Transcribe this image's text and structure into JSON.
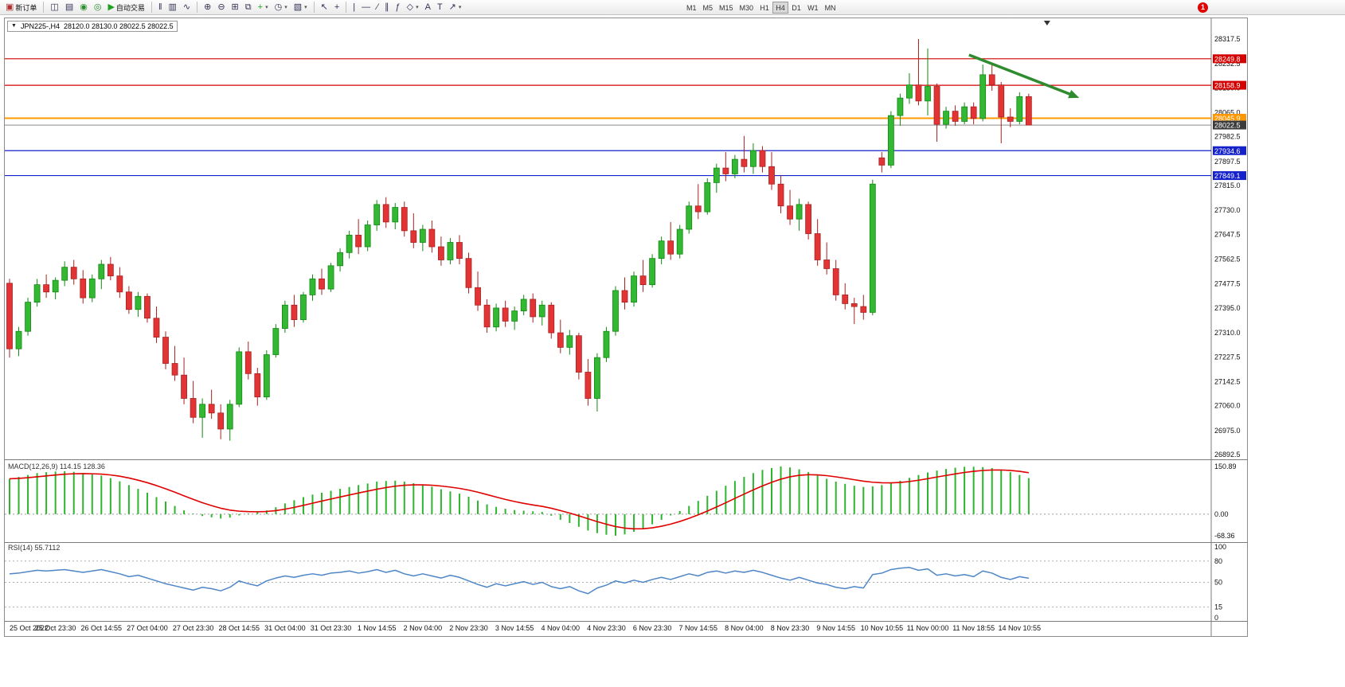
{
  "toolbar": {
    "groups": [
      [
        {
          "name": "new-order-button",
          "glyph": "▣",
          "glyph_color": "#b03030",
          "label": "新订单"
        }
      ],
      [
        {
          "name": "new-chart-button",
          "glyph": "◫"
        },
        {
          "name": "profiles-button",
          "glyph": "▤"
        },
        {
          "name": "market-watch-button",
          "glyph": "◉",
          "glyph_color": "#2a8f2a"
        },
        {
          "name": "navigator-button",
          "glyph": "◎",
          "glyph_color": "#2a8f2a"
        },
        {
          "name": "autotrading-button",
          "glyph": "▶",
          "glyph_color": "#1fa01f",
          "label": "自动交易"
        }
      ],
      [
        {
          "name": "chart-bars-button",
          "glyph": "‖"
        },
        {
          "name": "chart-candles-button",
          "glyph": "▥"
        },
        {
          "name": "chart-line-button",
          "glyph": "∿"
        }
      ],
      [
        {
          "name": "zoom-in-button",
          "glyph": "⊕"
        },
        {
          "name": "zoom-out-button",
          "glyph": "⊖"
        },
        {
          "name": "tile-windows-button",
          "glyph": "⊞"
        },
        {
          "name": "cascade-windows-button",
          "glyph": "⧉"
        },
        {
          "name": "indicators-button",
          "glyph": "+",
          "glyph_color": "#1fa01f",
          "dropdown": true
        },
        {
          "name": "periods-button",
          "glyph": "◷",
          "dropdown": true
        },
        {
          "name": "templates-button",
          "glyph": "▧",
          "dropdown": true
        }
      ],
      [
        {
          "name": "cursor-button",
          "glyph": "↖"
        },
        {
          "name": "crosshair-button",
          "glyph": "+"
        }
      ],
      [
        {
          "name": "vertical-line-button",
          "glyph": "|"
        },
        {
          "name": "horizontal-line-button",
          "glyph": "―"
        },
        {
          "name": "trendline-button",
          "glyph": "∕"
        },
        {
          "name": "channel-button",
          "glyph": "∥"
        },
        {
          "name": "fibonacci-button",
          "glyph": "ƒ"
        },
        {
          "name": "shapes-button",
          "glyph": "◇",
          "dropdown": true
        },
        {
          "name": "text-button",
          "glyph": "A"
        },
        {
          "name": "label-button",
          "glyph": "T"
        },
        {
          "name": "arrows-button",
          "glyph": "↗",
          "dropdown": true
        }
      ]
    ],
    "timeframes": [
      "M1",
      "M5",
      "M15",
      "M30",
      "H1",
      "H4",
      "D1",
      "W1",
      "MN"
    ],
    "active_timeframe": "H4",
    "notification_badge": "1"
  },
  "chart_data": [
    {
      "type": "candlestick",
      "title": "JPN225-,H4",
      "ohlc_line": "28120.0 28130.0 28022.5 28022.5",
      "up_color": "#33b833",
      "up_stroke": "#128912",
      "down_color": "#e23434",
      "down_stroke": "#a82222",
      "y_ticks": [
        28317.5,
        28232.5,
        28150.0,
        28065.0,
        27982.5,
        27897.5,
        27815.0,
        27730.0,
        27647.5,
        27562.5,
        27477.5,
        27395.0,
        27310.0,
        27227.5,
        27142.5,
        27060.0,
        26975.0,
        26892.5
      ],
      "hlines": [
        {
          "price": 28249.8,
          "label": "28249.8",
          "color": "#d40000",
          "badge": "#d40000",
          "width": 1.2
        },
        {
          "price": 28158.9,
          "label": "28158.9",
          "color": "#d40000",
          "badge": "#d40000",
          "width": 1.2
        },
        {
          "price": 28045.9,
          "label": "28045.9",
          "color": "#ff9800",
          "badge": "#ff9800",
          "width": 2
        },
        {
          "price": 28022.5,
          "label": "28022.5",
          "color": "#8a8a8a",
          "badge": "#3c3c3c",
          "width": 1
        },
        {
          "price": 27934.6,
          "label": "27934.6",
          "color": "#1522cc",
          "badge": "#1522cc",
          "width": 1.2
        },
        {
          "price": 27849.1,
          "label": "27849.1",
          "color": "#1522cc",
          "badge": "#1522cc",
          "width": 1.2
        }
      ],
      "trend_arrow": {
        "from_bar": 104.5,
        "from_price": 28263,
        "to_bar": 116.5,
        "to_price": 28116,
        "color": "#2e8b2e"
      },
      "shift_marker_bar": 113,
      "bars_per_label": 5,
      "x_labels": [
        "25 Oct 2022",
        "25 Oct 23:30",
        "26 Oct 14:55",
        "27 Oct 04:00",
        "27 Oct 23:30",
        "28 Oct 14:55",
        "31 Oct 04:00",
        "31 Oct 23:30",
        "1 Nov 14:55",
        "2 Nov 04:00",
        "2 Nov 23:30",
        "3 Nov 14:55",
        "4 Nov 04:00",
        "4 Nov 23:30",
        "6 Nov 23:30",
        "7 Nov 14:55",
        "8 Nov 04:00",
        "8 Nov 23:30",
        "9 Nov 14:55",
        "10 Nov 10:55",
        "11 Nov 00:00",
        "11 Nov 18:55",
        "14 Nov 10:55"
      ],
      "candles": [
        [
          27480,
          27495,
          27225,
          27255
        ],
        [
          27255,
          27330,
          27230,
          27315
        ],
        [
          27315,
          27430,
          27300,
          27415
        ],
        [
          27415,
          27495,
          27400,
          27475
        ],
        [
          27475,
          27510,
          27430,
          27450
        ],
        [
          27450,
          27500,
          27425,
          27490
        ],
        [
          27490,
          27555,
          27470,
          27535
        ],
        [
          27535,
          27560,
          27475,
          27495
        ],
        [
          27495,
          27525,
          27410,
          27430
        ],
        [
          27430,
          27510,
          27415,
          27495
        ],
        [
          27495,
          27560,
          27460,
          27545
        ],
        [
          27545,
          27570,
          27490,
          27505
        ],
        [
          27505,
          27535,
          27430,
          27450
        ],
        [
          27450,
          27470,
          27375,
          27390
        ],
        [
          27390,
          27450,
          27365,
          27435
        ],
        [
          27435,
          27445,
          27345,
          27360
        ],
        [
          27360,
          27400,
          27275,
          27295
        ],
        [
          27295,
          27315,
          27185,
          27205
        ],
        [
          27205,
          27265,
          27145,
          27165
        ],
        [
          27165,
          27225,
          27065,
          27085
        ],
        [
          27085,
          27145,
          27000,
          27020
        ],
        [
          27020,
          27085,
          26950,
          27065
        ],
        [
          27065,
          27115,
          27015,
          27035
        ],
        [
          27035,
          27065,
          26945,
          26980
        ],
        [
          26980,
          27080,
          26940,
          27065
        ],
        [
          27065,
          27260,
          27055,
          27245
        ],
        [
          27245,
          27280,
          27150,
          27170
        ],
        [
          27170,
          27190,
          27060,
          27090
        ],
        [
          27090,
          27250,
          27080,
          27235
        ],
        [
          27235,
          27340,
          27225,
          27325
        ],
        [
          27325,
          27420,
          27310,
          27405
        ],
        [
          27405,
          27440,
          27330,
          27355
        ],
        [
          27355,
          27450,
          27345,
          27440
        ],
        [
          27440,
          27510,
          27420,
          27495
        ],
        [
          27495,
          27530,
          27440,
          27460
        ],
        [
          27460,
          27550,
          27450,
          27540
        ],
        [
          27540,
          27600,
          27520,
          27585
        ],
        [
          27585,
          27660,
          27565,
          27645
        ],
        [
          27645,
          27700,
          27580,
          27605
        ],
        [
          27605,
          27695,
          27590,
          27680
        ],
        [
          27680,
          27765,
          27660,
          27750
        ],
        [
          27750,
          27775,
          27670,
          27690
        ],
        [
          27690,
          27755,
          27665,
          27740
        ],
        [
          27740,
          27760,
          27640,
          27660
        ],
        [
          27660,
          27720,
          27600,
          27620
        ],
        [
          27620,
          27680,
          27590,
          27665
        ],
        [
          27665,
          27695,
          27585,
          27605
        ],
        [
          27605,
          27640,
          27540,
          27560
        ],
        [
          27560,
          27635,
          27545,
          27620
        ],
        [
          27620,
          27645,
          27545,
          27565
        ],
        [
          27565,
          27585,
          27445,
          27465
        ],
        [
          27465,
          27520,
          27385,
          27405
        ],
        [
          27405,
          27425,
          27310,
          27330
        ],
        [
          27330,
          27410,
          27315,
          27395
        ],
        [
          27395,
          27420,
          27330,
          27350
        ],
        [
          27350,
          27400,
          27320,
          27385
        ],
        [
          27385,
          27440,
          27370,
          27425
        ],
        [
          27425,
          27445,
          27345,
          27365
        ],
        [
          27365,
          27420,
          27335,
          27405
        ],
        [
          27405,
          27415,
          27290,
          27310
        ],
        [
          27310,
          27355,
          27240,
          27260
        ],
        [
          27260,
          27320,
          27235,
          27300
        ],
        [
          27300,
          27310,
          27150,
          27175
        ],
        [
          27175,
          27220,
          27060,
          27085
        ],
        [
          27085,
          27240,
          27040,
          27225
        ],
        [
          27225,
          27330,
          27210,
          27315
        ],
        [
          27315,
          27470,
          27300,
          27455
        ],
        [
          27455,
          27500,
          27390,
          27415
        ],
        [
          27415,
          27520,
          27400,
          27505
        ],
        [
          27505,
          27560,
          27450,
          27475
        ],
        [
          27475,
          27580,
          27465,
          27565
        ],
        [
          27565,
          27640,
          27545,
          27625
        ],
        [
          27625,
          27690,
          27560,
          27580
        ],
        [
          27580,
          27680,
          27565,
          27665
        ],
        [
          27665,
          27760,
          27650,
          27745
        ],
        [
          27745,
          27820,
          27700,
          27725
        ],
        [
          27725,
          27840,
          27715,
          27825
        ],
        [
          27825,
          27890,
          27790,
          27875
        ],
        [
          27875,
          27930,
          27830,
          27855
        ],
        [
          27855,
          27920,
          27840,
          27905
        ],
        [
          27905,
          27985,
          27860,
          27880
        ],
        [
          27880,
          27960,
          27855,
          27935
        ],
        [
          27935,
          27950,
          27860,
          27880
        ],
        [
          27880,
          27930,
          27800,
          27820
        ],
        [
          27820,
          27850,
          27720,
          27745
        ],
        [
          27745,
          27800,
          27680,
          27700
        ],
        [
          27700,
          27770,
          27660,
          27750
        ],
        [
          27750,
          27760,
          27630,
          27650
        ],
        [
          27650,
          27700,
          27540,
          27560
        ],
        [
          27560,
          27620,
          27510,
          27530
        ],
        [
          27530,
          27560,
          27420,
          27440
        ],
        [
          27440,
          27480,
          27390,
          27410
        ],
        [
          27410,
          27430,
          27340,
          27400
        ],
        [
          27400,
          27440,
          27355,
          27380
        ],
        [
          27380,
          27835,
          27370,
          27820
        ],
        [
          27910,
          27930,
          27860,
          27885
        ],
        [
          27885,
          28070,
          27875,
          28055
        ],
        [
          28055,
          28130,
          28020,
          28115
        ],
        [
          28115,
          28200,
          28095,
          28160
        ],
        [
          28160,
          28317.5,
          28090,
          28105
        ],
        [
          28105,
          28285,
          28055,
          28155
        ],
        [
          28155,
          28165,
          27965,
          28025
        ],
        [
          28025,
          28085,
          28010,
          28070
        ],
        [
          28070,
          28090,
          28020,
          28035
        ],
        [
          28035,
          28100,
          28025,
          28085
        ],
        [
          28085,
          28100,
          28025,
          28045
        ],
        [
          28045,
          28230,
          28035,
          28195
        ],
        [
          28195,
          28235,
          28140,
          28160
        ],
        [
          28160,
          28170,
          27960,
          28050
        ],
        [
          28050,
          28080,
          28015,
          28035
        ],
        [
          28035,
          28135,
          28025,
          28120
        ],
        [
          28120,
          28130,
          28022.5,
          28022.5
        ]
      ]
    },
    {
      "type": "bar",
      "name": "MACD",
      "params": "12,26,9",
      "label_text": "MACD(12,26,9) 114.15 128.36",
      "display_values": [
        "114.15",
        "128.36"
      ],
      "levels": [
        150.89,
        0,
        -68.36
      ],
      "level_labels": [
        "150.89",
        "0.00",
        "-68.36"
      ],
      "histogram_color": "#2db52d",
      "signal_color": "#e00000",
      "signal_method": "EMA9 of values",
      "values": [
        112,
        118,
        124,
        130,
        133,
        135,
        136,
        134,
        130,
        126,
        122,
        114,
        104,
        92,
        80,
        68,
        54,
        40,
        26,
        12,
        2,
        -6,
        -10,
        -14,
        -11,
        -4,
        2,
        6,
        12,
        22,
        34,
        44,
        54,
        62,
        68,
        74,
        80,
        86,
        92,
        97,
        103,
        105,
        106,
        103,
        98,
        93,
        87,
        79,
        72,
        65,
        55,
        43,
        31,
        23,
        17,
        13,
        11,
        9,
        7,
        -5,
        -18,
        -28,
        -40,
        -52,
        -60,
        -65,
        -68.36,
        -64,
        -56,
        -45,
        -32,
        -18,
        -4,
        10,
        26,
        42,
        58,
        74,
        90,
        105,
        118,
        130,
        140,
        146,
        150.89,
        148,
        142,
        133,
        122,
        112,
        103,
        96,
        90,
        86,
        88,
        92,
        98,
        106,
        115,
        124,
        132,
        138,
        143,
        147,
        150,
        150,
        149,
        146,
        140,
        133,
        124,
        114.15
      ]
    },
    {
      "type": "line",
      "name": "RSI",
      "params": "14",
      "label_text": "RSI(14) 55.7112",
      "display_value": "55.7112",
      "levels": [
        100,
        80,
        50,
        15,
        0
      ],
      "level_labels": [
        "100",
        "80",
        "50",
        "15",
        "0"
      ],
      "dashed_levels": [
        80,
        50,
        15
      ],
      "line_color": "#4f86c6",
      "values": [
        62,
        63,
        65,
        67,
        66,
        67,
        68,
        66,
        64,
        66,
        68,
        65,
        62,
        58,
        60,
        56,
        52,
        48,
        45,
        42,
        39,
        43,
        41,
        38,
        43,
        52,
        48,
        45,
        52,
        56,
        59,
        57,
        60,
        62,
        60,
        63,
        64,
        66,
        63,
        65,
        68,
        64,
        67,
        62,
        59,
        62,
        59,
        56,
        60,
        57,
        52,
        47,
        43,
        48,
        45,
        48,
        51,
        47,
        50,
        44,
        41,
        44,
        38,
        34,
        42,
        46,
        52,
        49,
        53,
        50,
        54,
        57,
        54,
        58,
        62,
        59,
        64,
        66,
        63,
        66,
        64,
        67,
        64,
        60,
        56,
        53,
        57,
        53,
        49,
        47,
        43,
        41,
        44,
        42,
        61,
        63,
        68,
        70,
        71,
        67,
        69,
        60,
        62,
        59,
        61,
        58,
        66,
        63,
        57,
        54,
        58,
        55.71
      ]
    }
  ]
}
